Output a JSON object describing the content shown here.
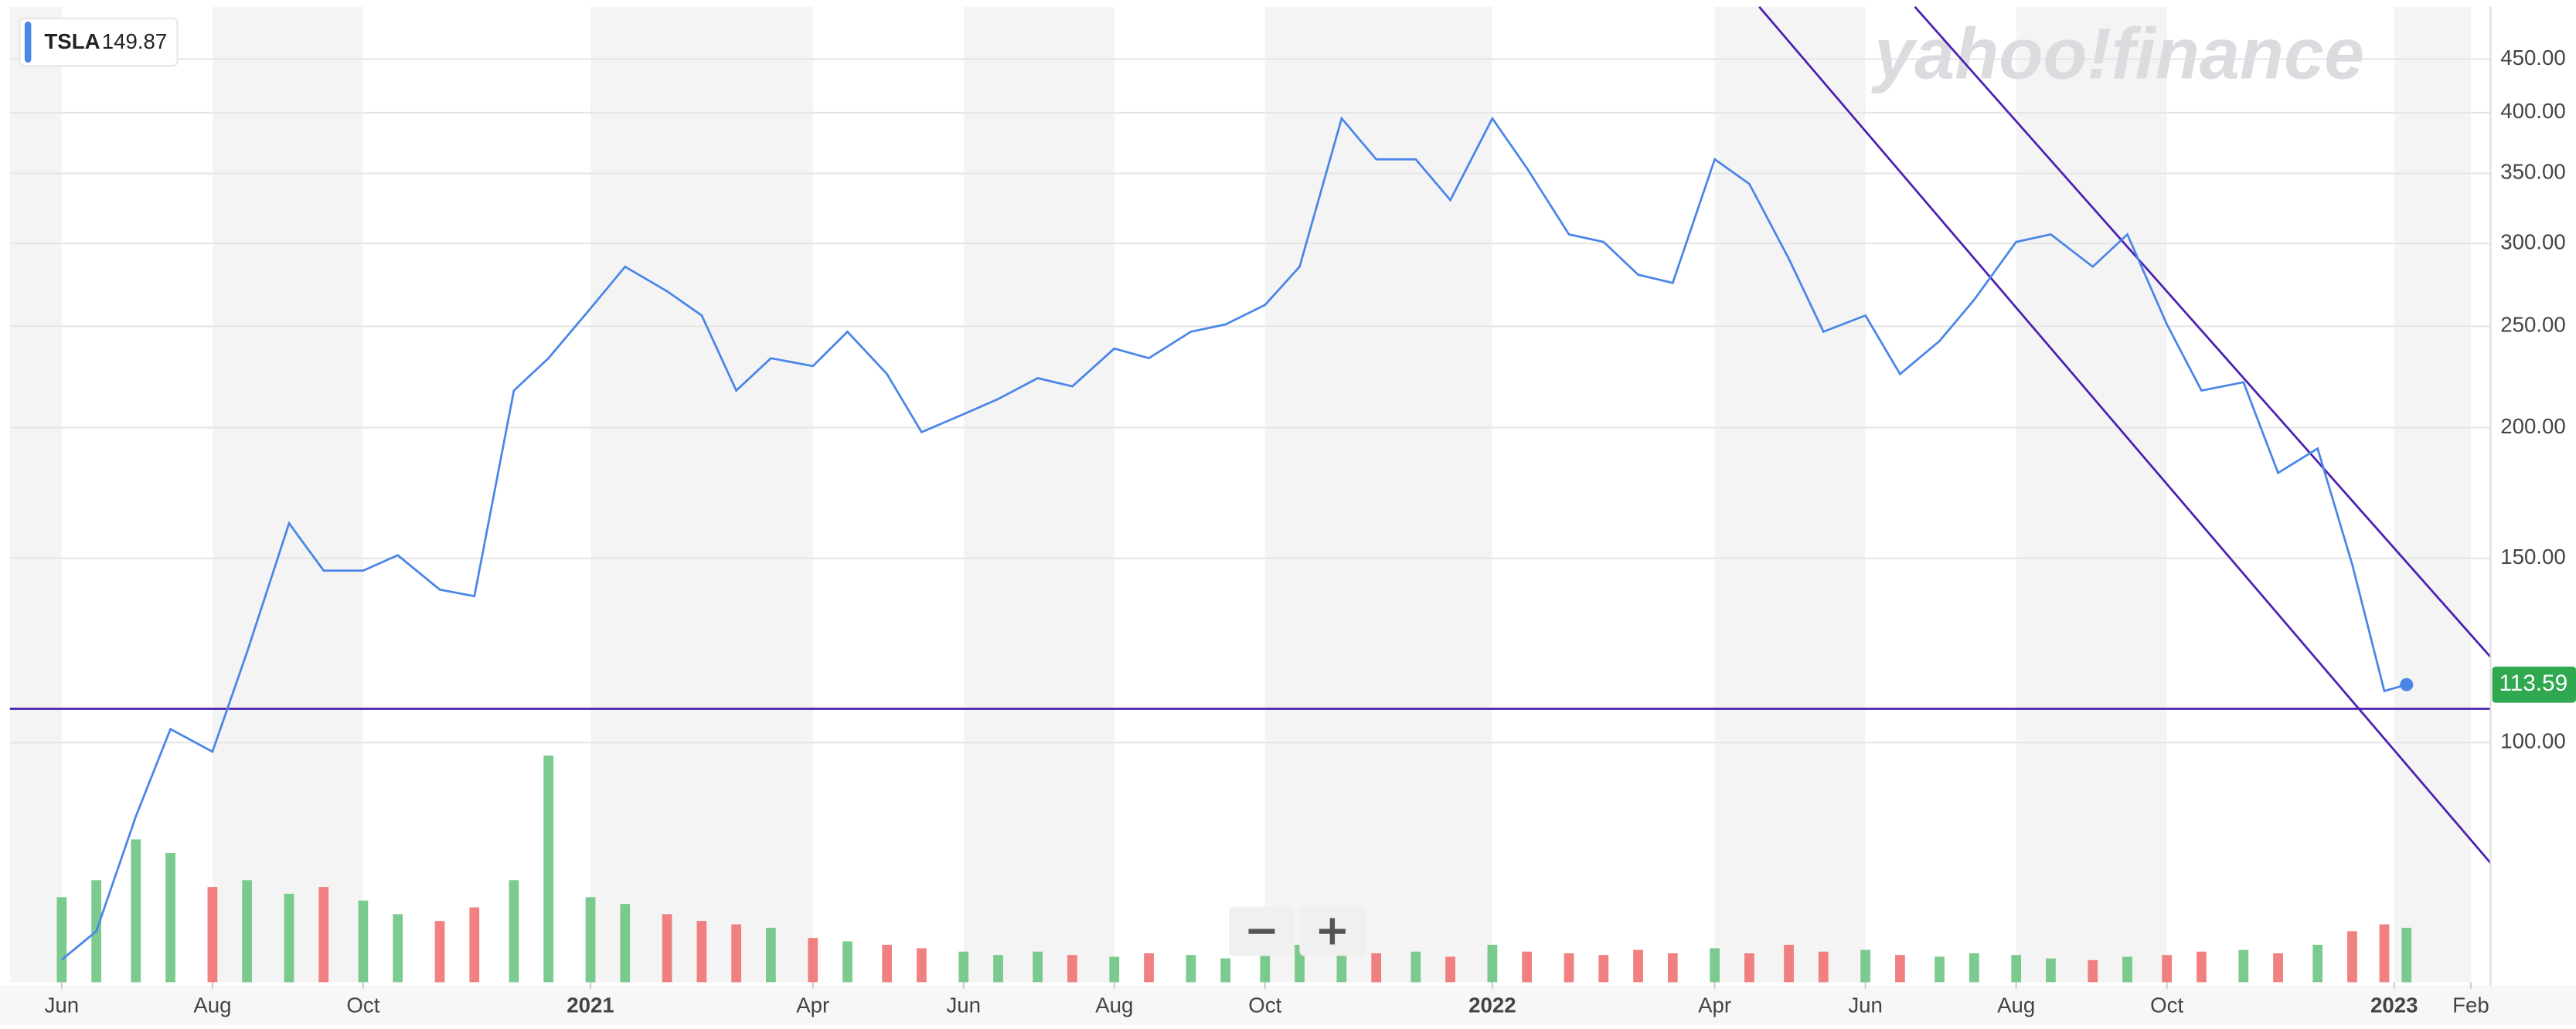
{
  "chart_data": {
    "type": "line",
    "log_y": true,
    "grid": true,
    "watermark": "yahoo!finance",
    "legend_value": 149.87,
    "x": [
      "2020-06-01",
      "2020-06-15",
      "2020-07-01",
      "2020-07-15",
      "2020-08-01",
      "2020-08-15",
      "2020-09-01",
      "2020-09-15",
      "2020-10-01",
      "2020-10-15",
      "2020-11-01",
      "2020-11-15",
      "2020-12-01",
      "2020-12-15",
      "2021-01-01",
      "2021-01-15",
      "2021-02-01",
      "2021-02-15",
      "2021-03-01",
      "2021-03-15",
      "2021-04-01",
      "2021-04-15",
      "2021-05-01",
      "2021-05-15",
      "2021-06-01",
      "2021-06-15",
      "2021-07-01",
      "2021-07-15",
      "2021-08-01",
      "2021-08-15",
      "2021-09-01",
      "2021-09-15",
      "2021-10-01",
      "2021-10-15",
      "2021-11-01",
      "2021-11-15",
      "2021-12-01",
      "2021-12-15",
      "2022-01-01",
      "2022-01-15",
      "2022-02-01",
      "2022-02-15",
      "2022-03-01",
      "2022-03-15",
      "2022-04-01",
      "2022-04-15",
      "2022-05-01",
      "2022-05-15",
      "2022-06-01",
      "2022-06-15",
      "2022-07-01",
      "2022-07-15",
      "2022-08-01",
      "2022-08-15",
      "2022-09-01",
      "2022-09-15",
      "2022-10-01",
      "2022-10-15",
      "2022-11-01",
      "2022-11-15",
      "2022-12-01",
      "2022-12-15",
      "2022-12-28",
      "2023-01-06"
    ],
    "series": [
      {
        "name": "TSLA",
        "color": "#4a86e8",
        "values": [
          62,
          66,
          85,
          103,
          98,
          122,
          162,
          146,
          146,
          151,
          140,
          138,
          217,
          233,
          260,
          285,
          270,
          256,
          217,
          233,
          229,
          247,
          225,
          198,
          206,
          213,
          223,
          219,
          238,
          233,
          247,
          251,
          262,
          285,
          395,
          361,
          361,
          330,
          395,
          354,
          306,
          301,
          280,
          275,
          361,
          342,
          290,
          247,
          256,
          225,
          242,
          265,
          301,
          306,
          285,
          306,
          251,
          217,
          221,
          181,
          191,
          148,
          112,
          113.59
        ]
      }
    ],
    "volume": [
      250,
      300,
      420,
      380,
      280,
      300,
      260,
      280,
      240,
      200,
      180,
      220,
      300,
      666,
      250,
      230,
      200,
      180,
      170,
      160,
      130,
      120,
      110,
      100,
      90,
      80,
      90,
      80,
      75,
      85,
      80,
      70,
      95,
      110,
      100,
      85,
      90,
      75,
      110,
      90,
      85,
      80,
      95,
      85,
      100,
      85,
      110,
      90,
      95,
      80,
      75,
      85,
      80,
      70,
      65,
      75,
      80,
      90,
      95,
      85,
      110,
      150,
      170,
      160
    ],
    "up_color": "#65c27a",
    "down_color": "#ee6b6b",
    "xlim": [
      "2020-05-11",
      "2023-02-09"
    ],
    "xticks": [
      {
        "value": "2020-06",
        "label": "Jun"
      },
      {
        "value": "2020-08",
        "label": "Aug"
      },
      {
        "value": "2020-10",
        "label": "Oct"
      },
      {
        "value": "2021-01",
        "label": "2021"
      },
      {
        "value": "2021-04",
        "label": "Apr"
      },
      {
        "value": "2021-06",
        "label": "Jun"
      },
      {
        "value": "2021-08",
        "label": "Aug"
      },
      {
        "value": "2021-10",
        "label": "Oct"
      },
      {
        "value": "2022-01",
        "label": "2022"
      },
      {
        "value": "2022-04",
        "label": "Apr"
      },
      {
        "value": "2022-06",
        "label": "Jun"
      },
      {
        "value": "2022-08",
        "label": "Aug"
      },
      {
        "value": "2022-10",
        "label": "Oct"
      },
      {
        "value": "2023-01",
        "label": "2023"
      },
      {
        "value": "2023-02",
        "label": "Feb"
      }
    ],
    "ylim": [
      59,
      505
    ],
    "yticks": [
      {
        "value": 100,
        "label": "100.00"
      },
      {
        "value": 150,
        "label": "150.00"
      },
      {
        "value": 200,
        "label": "200.00"
      },
      {
        "value": 250,
        "label": "250.00"
      },
      {
        "value": 300,
        "label": "300.00"
      },
      {
        "value": 350,
        "label": "350.00"
      },
      {
        "value": 400,
        "label": "400.00"
      },
      {
        "value": 450,
        "label": "450.00"
      }
    ],
    "trend_lines": [
      {
        "color": "#4b1fb3",
        "x": [
          "2020-05-11",
          "2023-02-09"
        ],
        "y": [
          107.7,
          107.7
        ]
      },
      {
        "color": "#4b1fb3",
        "x": [
          "2022-04-19",
          "2023-02-09"
        ],
        "y": [
          505,
          76.7
        ]
      },
      {
        "color": "#4b1fb3",
        "x": [
          "2022-06-21",
          "2023-02-09"
        ],
        "y": [
          505,
          120.7
        ]
      }
    ]
  }
}
